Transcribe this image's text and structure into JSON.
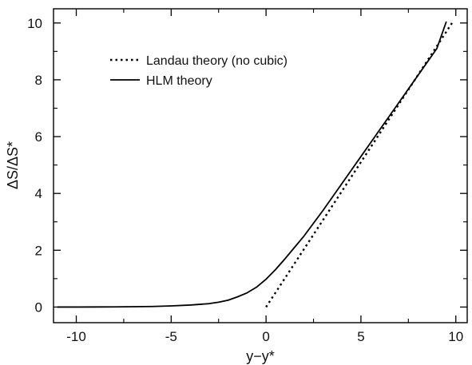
{
  "chart_data": {
    "type": "line",
    "title": "",
    "xlabel": "y−y*",
    "ylabel": "ΔS/ΔS*",
    "xlim": [
      -11.2,
      10.6
    ],
    "ylim": [
      -0.55,
      10.5
    ],
    "xticks": [
      -10,
      -5,
      0,
      5,
      10
    ],
    "xtick_labels": [
      "-10",
      "-5",
      "0",
      "5",
      "10"
    ],
    "xminor": [
      -7.5,
      -2.5,
      2.5,
      7.5
    ],
    "yticks": [
      0,
      2,
      4,
      6,
      8,
      10
    ],
    "ytick_labels": [
      "0",
      "2",
      "4",
      "6",
      "8",
      "10"
    ],
    "yminor": [
      1,
      3,
      5,
      7,
      9
    ],
    "grid": false,
    "legend_position": "top-left",
    "colors": {
      "line": "#000000"
    },
    "series": [
      {
        "name": "Landau theory (no cubic)",
        "style": "dotted",
        "x": [
          0,
          9.8
        ],
        "y": [
          0,
          10
        ]
      },
      {
        "name": "HLM theory",
        "style": "solid",
        "x": [
          -11,
          -10,
          -8,
          -6,
          -5,
          -4,
          -3,
          -2.5,
          -2,
          -1.5,
          -1,
          -0.5,
          0,
          0.5,
          1,
          1.5,
          2,
          3,
          4,
          5,
          6,
          7,
          8,
          9,
          9.5
        ],
        "y": [
          0,
          0,
          0.005,
          0.02,
          0.04,
          0.07,
          0.12,
          0.17,
          0.24,
          0.36,
          0.5,
          0.7,
          0.98,
          1.32,
          1.7,
          2.1,
          2.5,
          3.4,
          4.35,
          5.3,
          6.25,
          7.2,
          8.15,
          9.1,
          10.05
        ]
      }
    ]
  }
}
